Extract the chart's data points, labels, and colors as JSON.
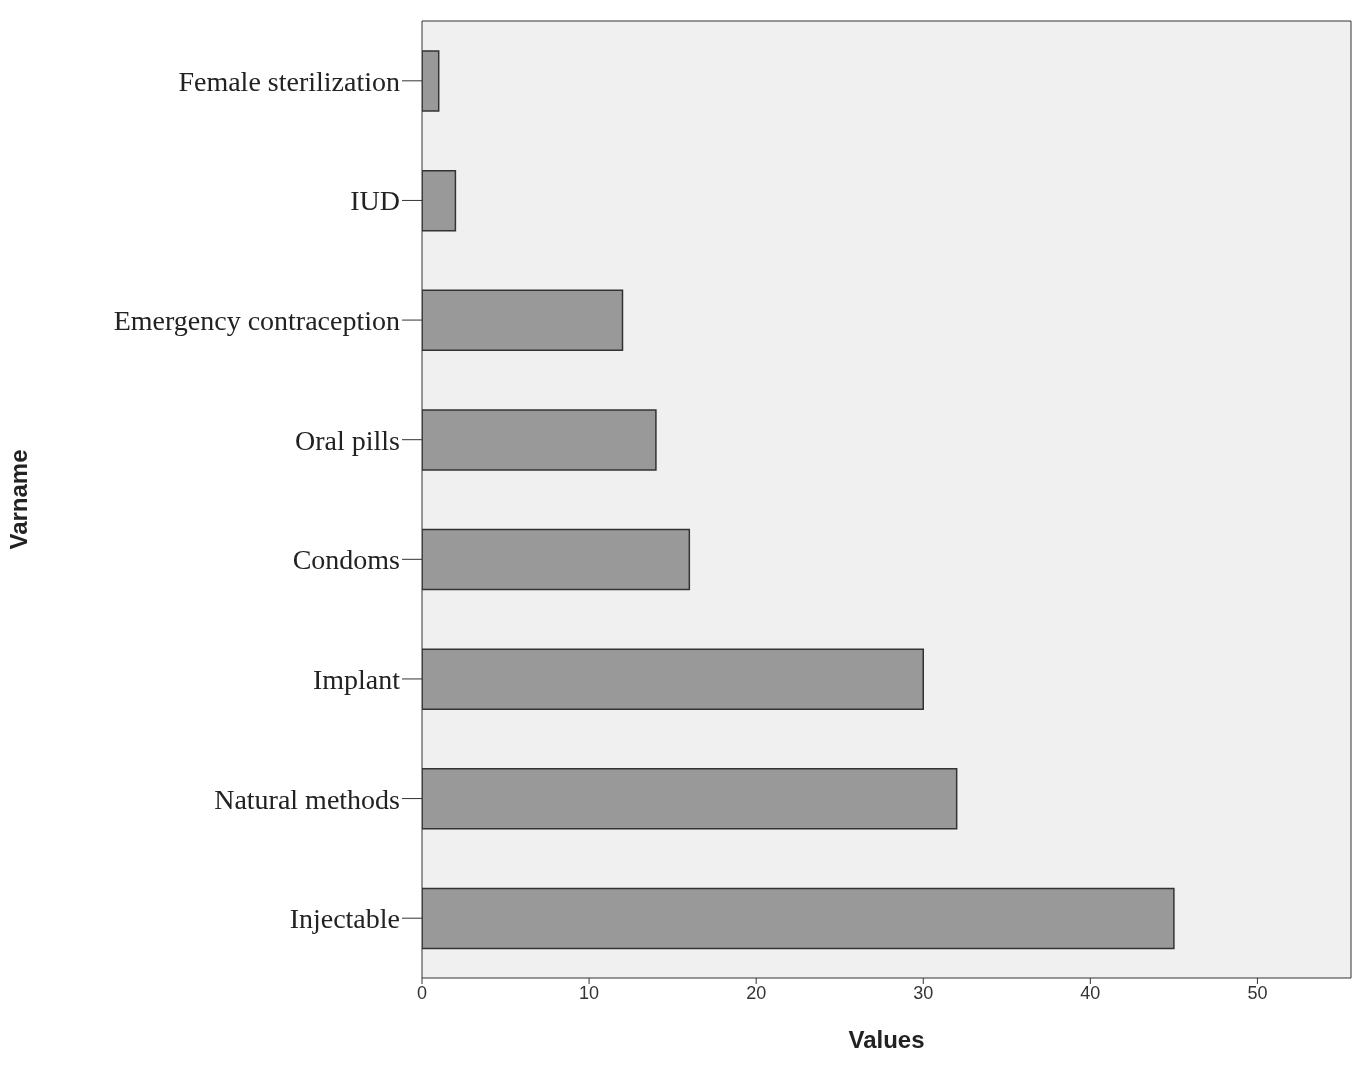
{
  "chart_data": {
    "type": "bar",
    "orientation": "horizontal",
    "xlabel": "Values",
    "ylabel": "Varname",
    "categories": [
      "Female sterilization",
      "IUD",
      "Emergency contraception",
      "Oral pills",
      "Condoms",
      "Implant",
      "Natural methods",
      "Injectable"
    ],
    "values": [
      1,
      2,
      12,
      14,
      16,
      30,
      32,
      45
    ],
    "color": "#999999",
    "xlim": [
      0,
      55.6
    ],
    "xticks": [
      0,
      10,
      20,
      30,
      40,
      50
    ],
    "grid": false,
    "legend": false
  }
}
